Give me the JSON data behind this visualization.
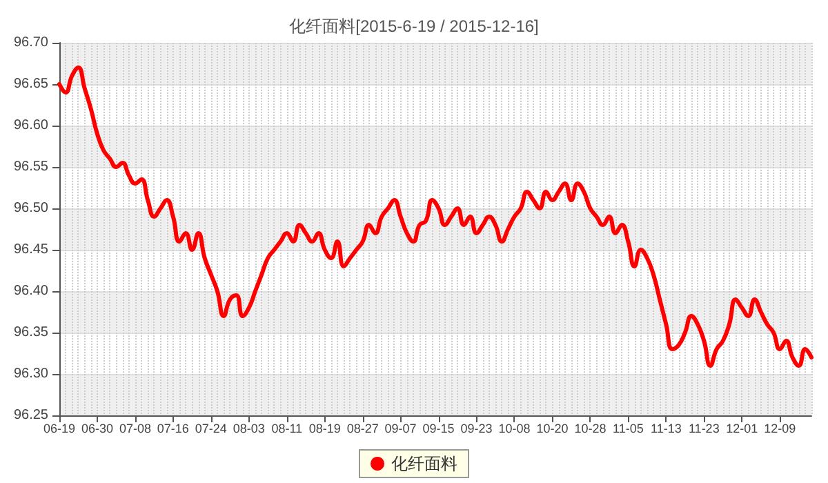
{
  "chart_data": {
    "type": "line",
    "title": "化纤面料[2015-6-19 / 2015-12-16]",
    "categories": [
      "06-19",
      null,
      null,
      null,
      null,
      null,
      "06-30",
      null,
      null,
      null,
      null,
      null,
      "07-08",
      null,
      null,
      null,
      null,
      null,
      "07-16",
      null,
      null,
      null,
      null,
      null,
      "07-24",
      null,
      null,
      null,
      null,
      null,
      "08-03",
      null,
      null,
      null,
      null,
      null,
      "08-11",
      null,
      null,
      null,
      null,
      null,
      "08-19",
      null,
      null,
      null,
      null,
      null,
      "08-27",
      null,
      null,
      null,
      null,
      null,
      "09-07",
      null,
      null,
      null,
      null,
      null,
      "09-15",
      null,
      null,
      null,
      null,
      null,
      "09-23",
      null,
      null,
      null,
      null,
      null,
      "10-08",
      null,
      null,
      null,
      null,
      null,
      "10-20",
      null,
      null,
      null,
      null,
      null,
      "10-28",
      null,
      null,
      null,
      null,
      null,
      "11-05",
      null,
      null,
      null,
      null,
      null,
      "11-13",
      null,
      null,
      null,
      null,
      null,
      "11-23",
      null,
      null,
      null,
      null,
      null,
      "12-01",
      null,
      null,
      null,
      null,
      null,
      "12-09",
      null,
      null,
      null,
      null,
      null
    ],
    "series": [
      {
        "name": "化纤面料",
        "color": "#ff0000",
        "values": [
          96.65,
          96.64,
          96.66,
          96.67,
          96.645,
          96.62,
          96.59,
          96.57,
          96.56,
          96.55,
          96.555,
          96.54,
          96.53,
          96.535,
          96.51,
          96.49,
          96.5,
          96.51,
          96.49,
          96.46,
          96.47,
          96.45,
          96.47,
          96.44,
          96.42,
          96.4,
          96.37,
          96.39,
          96.395,
          96.37,
          96.38,
          96.4,
          96.42,
          96.44,
          96.45,
          96.46,
          96.47,
          96.46,
          96.48,
          96.47,
          96.46,
          96.47,
          96.45,
          96.44,
          96.46,
          96.43,
          96.44,
          96.45,
          96.46,
          96.48,
          96.47,
          96.49,
          96.5,
          96.51,
          96.49,
          96.47,
          96.46,
          96.48,
          96.485,
          96.51,
          96.5,
          96.48,
          96.49,
          96.5,
          96.48,
          96.49,
          96.47,
          96.48,
          96.49,
          96.48,
          96.46,
          96.475,
          96.49,
          96.5,
          96.52,
          96.51,
          96.5,
          96.52,
          96.51,
          96.52,
          96.53,
          96.51,
          96.53,
          96.52,
          96.5,
          96.49,
          96.48,
          96.49,
          96.47,
          96.48,
          96.46,
          96.43,
          96.45,
          96.44,
          96.42,
          96.39,
          96.36,
          96.33,
          96.335,
          96.35,
          96.37,
          96.36,
          96.34,
          96.31,
          96.33,
          96.34,
          96.36,
          96.39,
          96.38,
          96.37,
          96.39,
          96.375,
          96.36,
          96.35,
          96.33,
          96.34,
          96.32,
          96.31,
          96.33,
          96.32
        ]
      }
    ],
    "ylim": [
      96.25,
      96.7
    ],
    "yticks": [
      96.25,
      {
        "value": 96.3,
        "label": "96.30"
      },
      96.35,
      {
        "value": 96.4,
        "label": "96.40"
      },
      96.45,
      {
        "value": 96.5,
        "label": "96.50"
      },
      96.55,
      {
        "value": 96.6,
        "label": "96.60"
      },
      96.65,
      {
        "value": 96.7,
        "label": "96.70"
      }
    ],
    "grid": true,
    "legend": "bottom",
    "marker": "none",
    "line_style": "solid"
  }
}
